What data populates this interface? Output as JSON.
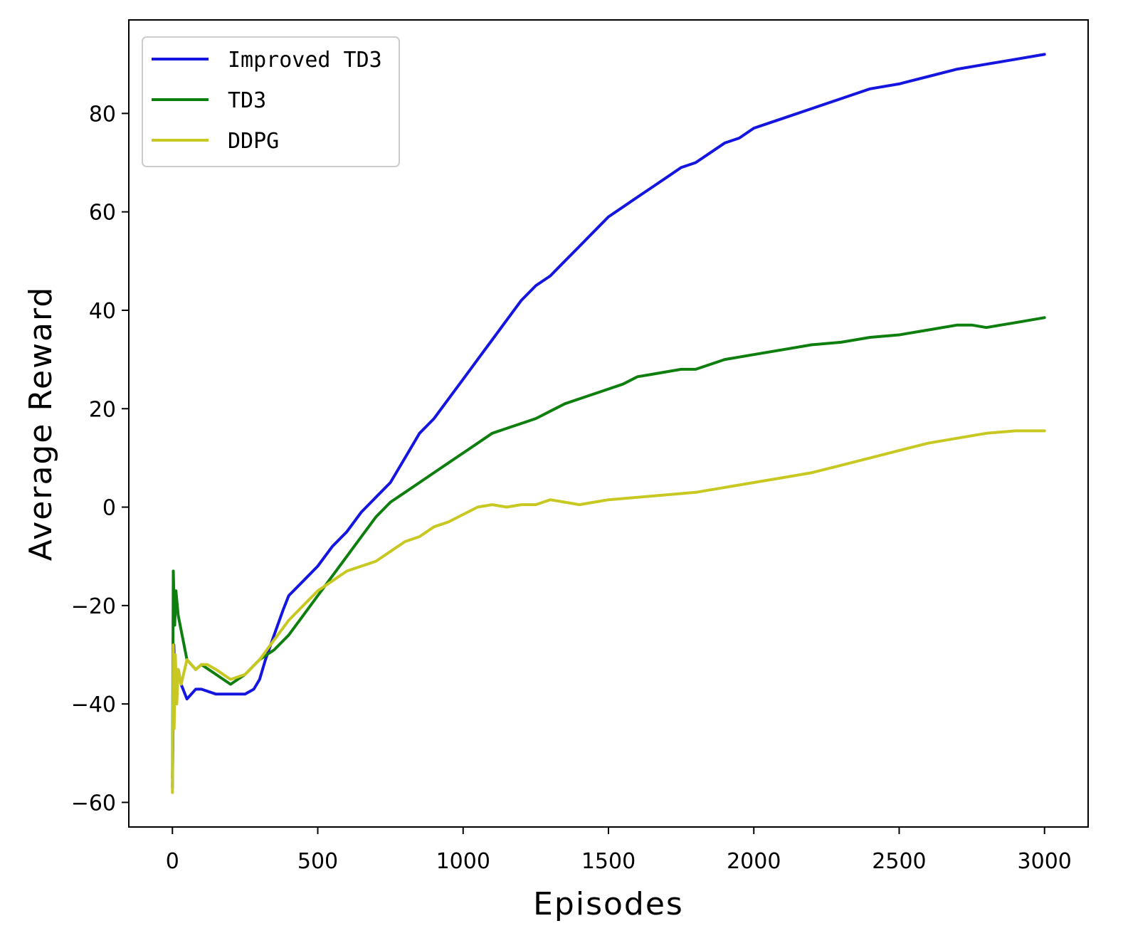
{
  "chart_data": {
    "type": "line",
    "xlabel": "Episodes",
    "ylabel": "Average Reward",
    "xlim": [
      -150,
      3150
    ],
    "ylim": [
      -65,
      99
    ],
    "xticks": [
      0,
      500,
      1000,
      1500,
      2000,
      2500,
      3000
    ],
    "yticks": [
      -60,
      -40,
      -20,
      0,
      20,
      40,
      60,
      80
    ],
    "grid": false,
    "legend_position": "top-left",
    "series": [
      {
        "name": "Improved TD3",
        "color": "#1515e0",
        "x": [
          0,
          5,
          10,
          20,
          30,
          50,
          80,
          100,
          150,
          200,
          250,
          280,
          300,
          320,
          350,
          380,
          400,
          450,
          500,
          550,
          600,
          650,
          700,
          750,
          800,
          850,
          900,
          950,
          1000,
          1050,
          1100,
          1150,
          1200,
          1250,
          1300,
          1350,
          1400,
          1450,
          1500,
          1550,
          1600,
          1650,
          1700,
          1750,
          1800,
          1850,
          1900,
          1950,
          2000,
          2050,
          2100,
          2200,
          2300,
          2400,
          2500,
          2600,
          2700,
          2800,
          2900,
          3000
        ],
        "y": [
          -57,
          -28,
          -40,
          -33,
          -36,
          -39,
          -37,
          -37,
          -38,
          -38,
          -38,
          -37,
          -35,
          -31,
          -26,
          -21,
          -18,
          -15,
          -12,
          -8,
          -5,
          -1,
          2,
          5,
          10,
          15,
          18,
          22,
          26,
          30,
          34,
          38,
          42,
          45,
          47,
          50,
          53,
          56,
          59,
          61,
          63,
          65,
          67,
          69,
          70,
          72,
          74,
          75,
          77,
          78,
          79,
          81,
          83,
          85,
          86,
          87.5,
          89,
          90,
          91,
          92
        ]
      },
      {
        "name": "TD3",
        "color": "#0e7f0e",
        "x": [
          0,
          3,
          8,
          12,
          20,
          30,
          50,
          80,
          100,
          150,
          200,
          250,
          300,
          350,
          400,
          450,
          500,
          550,
          600,
          650,
          700,
          750,
          800,
          850,
          900,
          950,
          1000,
          1050,
          1100,
          1150,
          1200,
          1250,
          1300,
          1350,
          1400,
          1450,
          1500,
          1550,
          1600,
          1650,
          1700,
          1750,
          1800,
          1850,
          1900,
          1950,
          2000,
          2100,
          2200,
          2300,
          2400,
          2500,
          2600,
          2700,
          2750,
          2800,
          2850,
          2900,
          3000
        ],
        "y": [
          -55,
          -13,
          -24,
          -17,
          -22,
          -25,
          -31,
          -33,
          -32,
          -34,
          -36,
          -34,
          -31,
          -29,
          -26,
          -22,
          -18,
          -14,
          -10,
          -6,
          -2,
          1,
          3,
          5,
          7,
          9,
          11,
          13,
          15,
          16,
          17,
          18,
          19.5,
          21,
          22,
          23,
          24,
          25,
          26.5,
          27,
          27.5,
          28,
          28,
          29,
          30,
          30.5,
          31,
          32,
          33,
          33.5,
          34.5,
          35,
          36,
          37,
          37,
          36.5,
          37,
          37.5,
          38.5
        ]
      },
      {
        "name": "DDPG",
        "color": "#c8c822",
        "x": [
          0,
          3,
          6,
          10,
          15,
          20,
          30,
          50,
          80,
          100,
          120,
          150,
          200,
          250,
          300,
          350,
          400,
          450,
          500,
          550,
          600,
          650,
          700,
          750,
          800,
          850,
          900,
          950,
          1000,
          1050,
          1100,
          1150,
          1200,
          1250,
          1300,
          1350,
          1400,
          1450,
          1500,
          1600,
          1700,
          1800,
          1900,
          2000,
          2100,
          2200,
          2300,
          2400,
          2500,
          2600,
          2700,
          2800,
          2900,
          3000
        ],
        "y": [
          -58,
          -28,
          -45,
          -30,
          -40,
          -33,
          -36,
          -31,
          -33,
          -32,
          -32,
          -33,
          -35,
          -34,
          -31,
          -27,
          -23,
          -20,
          -17,
          -15,
          -13,
          -12,
          -11,
          -9,
          -7,
          -6,
          -4,
          -3,
          -1.5,
          0,
          0.5,
          0,
          0.5,
          0.5,
          1.5,
          1,
          0.5,
          1,
          1.5,
          2,
          2.5,
          3,
          4,
          5,
          6,
          7,
          8.5,
          10,
          11.5,
          13,
          14,
          15,
          15.5,
          15.5
        ]
      }
    ]
  }
}
